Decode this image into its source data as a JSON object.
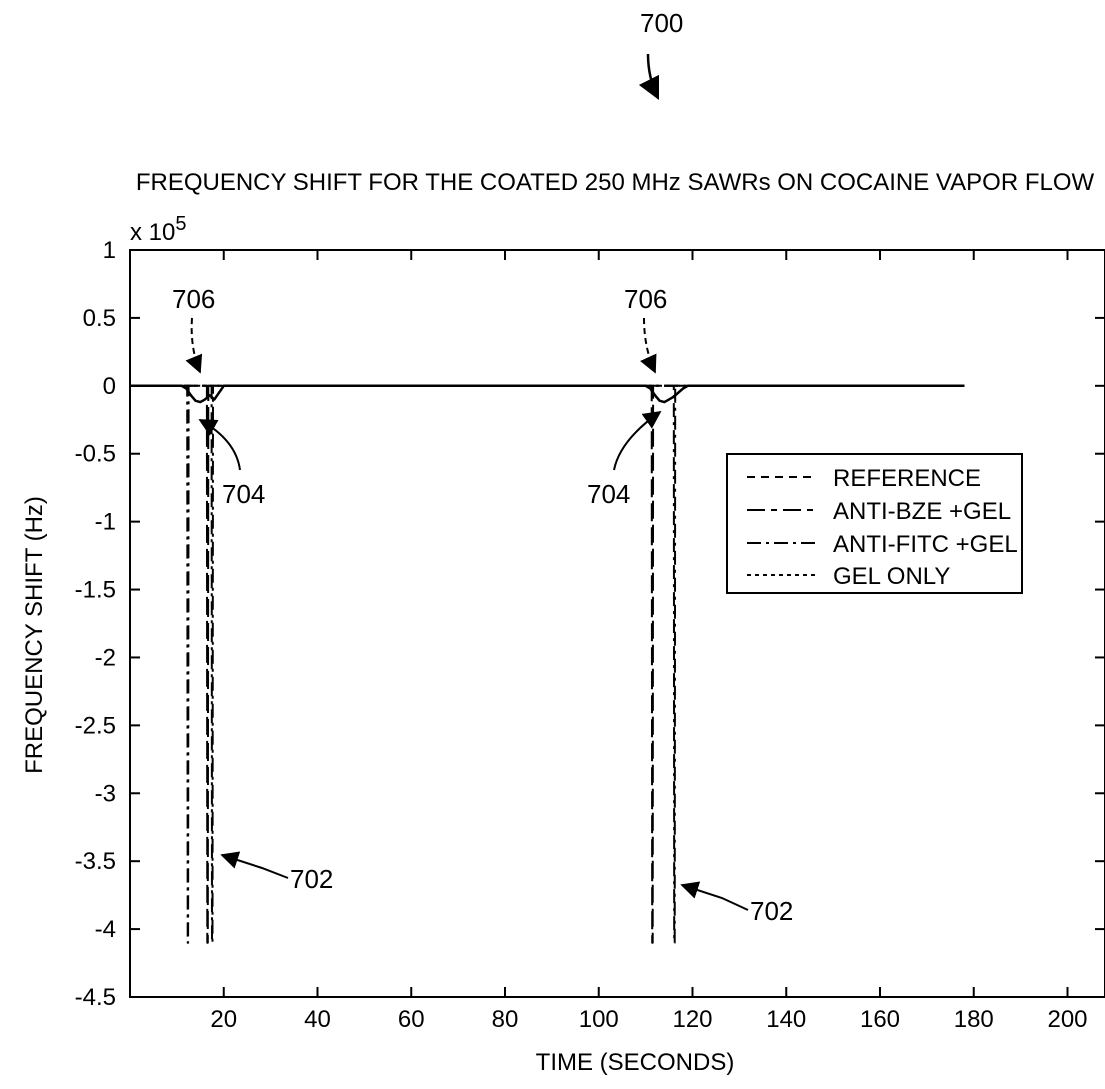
{
  "figure": {
    "reference_numeral": "700",
    "callouts": {
      "curve_dip_left": "706",
      "curve_dip_right": "706",
      "dip_shape_left": "704",
      "dip_shape_right": "704",
      "spike_left": "702",
      "spike_right": "702"
    }
  },
  "chart_data": {
    "type": "line",
    "title": "FREQUENCY SHIFT FOR THE COATED 250 MHz SAWRs ON COCAINE VAPOR FLOW",
    "xlabel": "TIME (SECONDS)",
    "ylabel": "FREQUENCY SHIFT (Hz)",
    "y_multiplier": "x 10",
    "y_multiplier_exponent": "5",
    "xlim": [
      0,
      208
    ],
    "ylim": [
      -4.5,
      1
    ],
    "x_ticks": [
      20,
      40,
      60,
      80,
      100,
      120,
      140,
      160,
      180,
      200
    ],
    "x_tick_labels": [
      "20",
      "40",
      "60",
      "80",
      "100",
      "120",
      "140",
      "160",
      "180",
      "200"
    ],
    "y_ticks": [
      1,
      0.5,
      0,
      -0.5,
      -1,
      -1.5,
      -2,
      -2.5,
      -3,
      -3.5,
      -4,
      -4.5
    ],
    "y_tick_labels": [
      "1",
      "0.5",
      "0",
      "-0.5",
      "-1",
      "-1.5",
      "-2",
      "-2.5",
      "-3",
      "-3.5",
      "-4",
      "-4.5"
    ],
    "grid": false,
    "legend_position": "right",
    "legend": [
      "REFERENCE",
      "ANTI-BZE +GEL",
      "ANTI-FITC +GEL",
      "GEL ONLY"
    ],
    "series": [
      {
        "name": "REFERENCE",
        "style": "dash-dot",
        "x": [
          0,
          12.2,
          12.3,
          12.4,
          12.5,
          178
        ],
        "y": [
          0,
          0,
          -4.1,
          -4.1,
          0,
          0
        ]
      },
      {
        "name": "ANTI-BZE +GEL",
        "style": "long-dash",
        "x": [
          0,
          16.4,
          16.5,
          16.6,
          16.7,
          111.3,
          111.4,
          111.5,
          111.6,
          178
        ],
        "y": [
          0,
          0,
          -4.1,
          -4.1,
          0,
          0,
          -4.1,
          -4.1,
          0,
          0
        ]
      },
      {
        "name": "ANTI-FITC +GEL",
        "style": "dash-dot",
        "x": [
          0,
          17.4,
          17.5,
          17.6,
          17.7,
          116.0,
          116.1,
          116.2,
          116.3,
          178
        ],
        "y": [
          0,
          0,
          -4.1,
          -4.1,
          0,
          0,
          -4.1,
          -4.1,
          0,
          0
        ]
      },
      {
        "name": "GEL ONLY",
        "style": "dotted",
        "x": [
          0,
          178
        ],
        "y": [
          0,
          0
        ]
      },
      {
        "name": "",
        "style": "solid",
        "x": [
          0,
          11,
          12,
          13,
          14,
          15,
          16,
          17,
          18,
          19,
          20,
          110,
          111,
          112,
          113,
          114,
          115,
          116,
          117,
          118,
          119,
          178
        ],
        "y": [
          0,
          0,
          -0.02,
          -0.07,
          -0.11,
          -0.12,
          -0.1,
          -0.07,
          -0.1,
          -0.05,
          0,
          0,
          -0.02,
          -0.07,
          -0.11,
          -0.12,
          -0.1,
          -0.08,
          -0.05,
          -0.02,
          0,
          0
        ]
      }
    ]
  },
  "colors": {
    "ink": "#000000",
    "background": "#ffffff"
  }
}
